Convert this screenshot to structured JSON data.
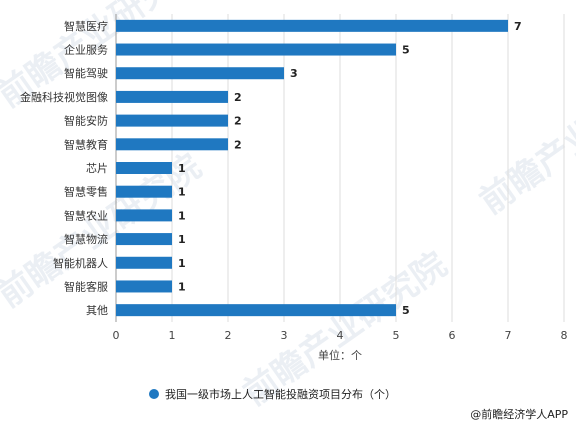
{
  "chart_data": {
    "type": "bar",
    "orientation": "horizontal",
    "categories": [
      "智慧医疗",
      "企业服务",
      "智能驾驶",
      "金融科技视觉图像",
      "智能安防",
      "智慧教育",
      "芯片",
      "智慧零售",
      "智慧农业",
      "智慧物流",
      "智能机器人",
      "智能客服",
      "其他"
    ],
    "series": [
      {
        "name": "我国一级市场上人工智能投融资项目分布（个）",
        "values": [
          7,
          5,
          3,
          2,
          2,
          2,
          1,
          1,
          1,
          1,
          1,
          1,
          5
        ]
      }
    ],
    "xlim": [
      0,
      8
    ],
    "xticks": [
      0,
      1,
      2,
      3,
      4,
      5,
      6,
      7,
      8
    ],
    "xlabel": "单位：个",
    "legend_position": "bottom",
    "grid": true,
    "bar_color": "#1f78c1"
  },
  "source": "@前瞻经济学人APP",
  "watermark": "前瞻产业研究院"
}
